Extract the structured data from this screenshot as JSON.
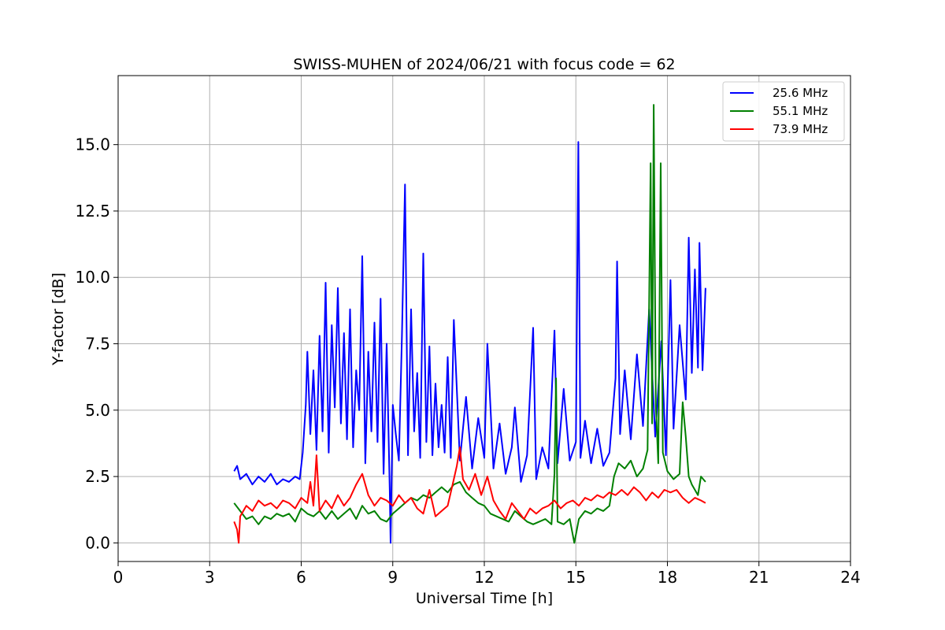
{
  "chart_data": {
    "type": "line",
    "title": "SWISS-MUHEN of 2024/06/21 with focus code = 62",
    "xlabel": "Universal Time [h]",
    "ylabel": "Y-factor [dB]",
    "xlim": [
      0,
      24
    ],
    "ylim": [
      -0.7,
      17.6
    ],
    "xticks": [
      0,
      3,
      6,
      9,
      12,
      15,
      18,
      21,
      24
    ],
    "xtick_labels": [
      "0",
      "3",
      "6",
      "9",
      "12",
      "15",
      "18",
      "21",
      "24"
    ],
    "yticks": [
      0,
      2.5,
      5,
      7.5,
      10,
      12.5,
      15
    ],
    "ytick_labels": [
      "0.0",
      "2.5",
      "5.0",
      "7.5",
      "10.0",
      "12.5",
      "15.0"
    ],
    "grid": true,
    "legend_position": "top-right",
    "series": [
      {
        "name": "25.6 MHz",
        "color": "#0000ff",
        "points": [
          [
            3.8,
            2.7
          ],
          [
            3.9,
            2.9
          ],
          [
            4.0,
            2.4
          ],
          [
            4.2,
            2.6
          ],
          [
            4.4,
            2.2
          ],
          [
            4.6,
            2.5
          ],
          [
            4.8,
            2.3
          ],
          [
            5.0,
            2.6
          ],
          [
            5.2,
            2.2
          ],
          [
            5.4,
            2.4
          ],
          [
            5.6,
            2.3
          ],
          [
            5.8,
            2.5
          ],
          [
            5.95,
            2.4
          ],
          [
            6.05,
            3.4
          ],
          [
            6.15,
            5.2
          ],
          [
            6.2,
            7.2
          ],
          [
            6.3,
            4.1
          ],
          [
            6.4,
            6.5
          ],
          [
            6.5,
            3.5
          ],
          [
            6.6,
            7.8
          ],
          [
            6.7,
            4.2
          ],
          [
            6.8,
            9.8
          ],
          [
            6.9,
            3.4
          ],
          [
            7.0,
            8.2
          ],
          [
            7.1,
            5.1
          ],
          [
            7.2,
            9.6
          ],
          [
            7.3,
            4.5
          ],
          [
            7.4,
            7.9
          ],
          [
            7.5,
            3.9
          ],
          [
            7.6,
            8.8
          ],
          [
            7.7,
            3.6
          ],
          [
            7.8,
            6.5
          ],
          [
            7.9,
            5.0
          ],
          [
            8.0,
            10.8
          ],
          [
            8.1,
            3.0
          ],
          [
            8.2,
            7.2
          ],
          [
            8.3,
            4.2
          ],
          [
            8.4,
            8.3
          ],
          [
            8.5,
            3.8
          ],
          [
            8.6,
            9.2
          ],
          [
            8.7,
            2.6
          ],
          [
            8.8,
            7.5
          ],
          [
            8.9,
            2.0
          ],
          [
            8.93,
            0.0
          ],
          [
            9.0,
            5.2
          ],
          [
            9.1,
            4.1
          ],
          [
            9.2,
            3.1
          ],
          [
            9.3,
            7.8
          ],
          [
            9.4,
            13.5
          ],
          [
            9.5,
            3.3
          ],
          [
            9.6,
            8.8
          ],
          [
            9.7,
            4.2
          ],
          [
            9.8,
            6.4
          ],
          [
            9.9,
            3.2
          ],
          [
            10.0,
            10.9
          ],
          [
            10.1,
            3.8
          ],
          [
            10.2,
            7.4
          ],
          [
            10.3,
            3.3
          ],
          [
            10.4,
            6.0
          ],
          [
            10.5,
            3.6
          ],
          [
            10.6,
            5.2
          ],
          [
            10.7,
            3.4
          ],
          [
            10.8,
            7.0
          ],
          [
            10.9,
            3.2
          ],
          [
            11.0,
            8.4
          ],
          [
            11.2,
            3.1
          ],
          [
            11.4,
            5.5
          ],
          [
            11.6,
            2.8
          ],
          [
            11.8,
            4.7
          ],
          [
            12.0,
            3.2
          ],
          [
            12.1,
            7.5
          ],
          [
            12.3,
            2.8
          ],
          [
            12.5,
            4.5
          ],
          [
            12.7,
            2.6
          ],
          [
            12.9,
            3.6
          ],
          [
            13.0,
            5.1
          ],
          [
            13.2,
            2.3
          ],
          [
            13.4,
            3.3
          ],
          [
            13.6,
            8.1
          ],
          [
            13.7,
            2.4
          ],
          [
            13.9,
            3.6
          ],
          [
            14.1,
            2.8
          ],
          [
            14.3,
            8.0
          ],
          [
            14.4,
            3.0
          ],
          [
            14.6,
            5.8
          ],
          [
            14.8,
            3.1
          ],
          [
            15.0,
            3.8
          ],
          [
            15.08,
            15.1
          ],
          [
            15.15,
            3.2
          ],
          [
            15.3,
            4.6
          ],
          [
            15.5,
            3.0
          ],
          [
            15.7,
            4.3
          ],
          [
            15.9,
            2.9
          ],
          [
            16.1,
            3.4
          ],
          [
            16.3,
            6.2
          ],
          [
            16.35,
            10.6
          ],
          [
            16.45,
            4.1
          ],
          [
            16.6,
            6.5
          ],
          [
            16.8,
            3.9
          ],
          [
            17.0,
            7.1
          ],
          [
            17.2,
            4.4
          ],
          [
            17.4,
            8.8
          ],
          [
            17.6,
            4.0
          ],
          [
            17.8,
            7.6
          ],
          [
            17.95,
            3.3
          ],
          [
            18.1,
            9.9
          ],
          [
            18.2,
            4.3
          ],
          [
            18.4,
            8.2
          ],
          [
            18.6,
            5.4
          ],
          [
            18.7,
            11.5
          ],
          [
            18.8,
            6.4
          ],
          [
            18.9,
            10.3
          ],
          [
            19.0,
            6.6
          ],
          [
            19.05,
            11.3
          ],
          [
            19.15,
            6.5
          ],
          [
            19.25,
            9.6
          ]
        ]
      },
      {
        "name": "55.1 MHz",
        "color": "#008000",
        "points": [
          [
            3.8,
            1.5
          ],
          [
            4.0,
            1.2
          ],
          [
            4.2,
            0.9
          ],
          [
            4.4,
            1.0
          ],
          [
            4.6,
            0.7
          ],
          [
            4.8,
            1.0
          ],
          [
            5.0,
            0.9
          ],
          [
            5.2,
            1.1
          ],
          [
            5.4,
            1.0
          ],
          [
            5.6,
            1.1
          ],
          [
            5.8,
            0.8
          ],
          [
            6.0,
            1.3
          ],
          [
            6.2,
            1.1
          ],
          [
            6.4,
            1.0
          ],
          [
            6.6,
            1.2
          ],
          [
            6.8,
            0.9
          ],
          [
            7.0,
            1.2
          ],
          [
            7.2,
            0.9
          ],
          [
            7.4,
            1.1
          ],
          [
            7.6,
            1.3
          ],
          [
            7.8,
            0.9
          ],
          [
            8.0,
            1.4
          ],
          [
            8.2,
            1.1
          ],
          [
            8.4,
            1.2
          ],
          [
            8.6,
            0.9
          ],
          [
            8.8,
            0.8
          ],
          [
            9.0,
            1.1
          ],
          [
            9.2,
            1.3
          ],
          [
            9.4,
            1.5
          ],
          [
            9.6,
            1.7
          ],
          [
            9.8,
            1.6
          ],
          [
            10.0,
            1.8
          ],
          [
            10.2,
            1.7
          ],
          [
            10.4,
            1.9
          ],
          [
            10.6,
            2.1
          ],
          [
            10.8,
            1.9
          ],
          [
            11.0,
            2.2
          ],
          [
            11.2,
            2.3
          ],
          [
            11.4,
            1.9
          ],
          [
            11.6,
            1.7
          ],
          [
            11.8,
            1.5
          ],
          [
            12.0,
            1.4
          ],
          [
            12.2,
            1.1
          ],
          [
            12.4,
            1.0
          ],
          [
            12.6,
            0.9
          ],
          [
            12.8,
            0.8
          ],
          [
            13.0,
            1.2
          ],
          [
            13.2,
            1.0
          ],
          [
            13.4,
            0.8
          ],
          [
            13.6,
            0.7
          ],
          [
            13.8,
            0.8
          ],
          [
            14.0,
            0.9
          ],
          [
            14.2,
            0.7
          ],
          [
            14.3,
            2.6
          ],
          [
            14.35,
            6.2
          ],
          [
            14.4,
            0.8
          ],
          [
            14.6,
            0.7
          ],
          [
            14.8,
            0.9
          ],
          [
            14.95,
            0.0
          ],
          [
            15.1,
            0.9
          ],
          [
            15.3,
            1.2
          ],
          [
            15.5,
            1.1
          ],
          [
            15.7,
            1.3
          ],
          [
            15.9,
            1.2
          ],
          [
            16.1,
            1.4
          ],
          [
            16.25,
            2.5
          ],
          [
            16.4,
            3.0
          ],
          [
            16.6,
            2.8
          ],
          [
            16.8,
            3.1
          ],
          [
            17.0,
            2.5
          ],
          [
            17.2,
            2.8
          ],
          [
            17.35,
            3.5
          ],
          [
            17.45,
            14.3
          ],
          [
            17.5,
            4.5
          ],
          [
            17.55,
            16.5
          ],
          [
            17.62,
            5.2
          ],
          [
            17.7,
            3.0
          ],
          [
            17.78,
            14.3
          ],
          [
            17.85,
            3.4
          ],
          [
            18.0,
            2.7
          ],
          [
            18.2,
            2.4
          ],
          [
            18.4,
            2.6
          ],
          [
            18.5,
            5.3
          ],
          [
            18.6,
            4.0
          ],
          [
            18.7,
            2.5
          ],
          [
            18.8,
            2.2
          ],
          [
            19.0,
            1.8
          ],
          [
            19.1,
            2.5
          ],
          [
            19.25,
            2.3
          ]
        ]
      },
      {
        "name": "73.9 MHz",
        "color": "#ff0000",
        "points": [
          [
            3.8,
            0.8
          ],
          [
            3.9,
            0.5
          ],
          [
            3.95,
            0.0
          ],
          [
            4.0,
            1.0
          ],
          [
            4.2,
            1.4
          ],
          [
            4.4,
            1.2
          ],
          [
            4.6,
            1.6
          ],
          [
            4.8,
            1.4
          ],
          [
            5.0,
            1.5
          ],
          [
            5.2,
            1.3
          ],
          [
            5.4,
            1.6
          ],
          [
            5.6,
            1.5
          ],
          [
            5.8,
            1.3
          ],
          [
            6.0,
            1.7
          ],
          [
            6.2,
            1.5
          ],
          [
            6.3,
            2.3
          ],
          [
            6.4,
            1.4
          ],
          [
            6.5,
            3.3
          ],
          [
            6.6,
            1.2
          ],
          [
            6.8,
            1.6
          ],
          [
            7.0,
            1.3
          ],
          [
            7.2,
            1.8
          ],
          [
            7.4,
            1.4
          ],
          [
            7.6,
            1.7
          ],
          [
            7.8,
            2.2
          ],
          [
            8.0,
            2.6
          ],
          [
            8.2,
            1.8
          ],
          [
            8.4,
            1.4
          ],
          [
            8.6,
            1.7
          ],
          [
            8.8,
            1.6
          ],
          [
            9.0,
            1.4
          ],
          [
            9.2,
            1.8
          ],
          [
            9.4,
            1.5
          ],
          [
            9.6,
            1.7
          ],
          [
            9.8,
            1.3
          ],
          [
            10.0,
            1.1
          ],
          [
            10.2,
            2.0
          ],
          [
            10.4,
            1.0
          ],
          [
            10.6,
            1.2
          ],
          [
            10.8,
            1.4
          ],
          [
            11.0,
            2.4
          ],
          [
            11.1,
            2.9
          ],
          [
            11.2,
            3.6
          ],
          [
            11.3,
            2.4
          ],
          [
            11.5,
            2.0
          ],
          [
            11.7,
            2.6
          ],
          [
            11.9,
            1.8
          ],
          [
            12.1,
            2.5
          ],
          [
            12.3,
            1.6
          ],
          [
            12.5,
            1.2
          ],
          [
            12.7,
            0.9
          ],
          [
            12.9,
            1.5
          ],
          [
            13.1,
            1.2
          ],
          [
            13.3,
            0.9
          ],
          [
            13.5,
            1.3
          ],
          [
            13.7,
            1.1
          ],
          [
            13.9,
            1.3
          ],
          [
            14.1,
            1.4
          ],
          [
            14.3,
            1.6
          ],
          [
            14.5,
            1.3
          ],
          [
            14.7,
            1.5
          ],
          [
            14.9,
            1.6
          ],
          [
            15.1,
            1.4
          ],
          [
            15.3,
            1.7
          ],
          [
            15.5,
            1.6
          ],
          [
            15.7,
            1.8
          ],
          [
            15.9,
            1.7
          ],
          [
            16.1,
            1.9
          ],
          [
            16.3,
            1.8
          ],
          [
            16.5,
            2.0
          ],
          [
            16.7,
            1.8
          ],
          [
            16.9,
            2.1
          ],
          [
            17.1,
            1.9
          ],
          [
            17.3,
            1.6
          ],
          [
            17.5,
            1.9
          ],
          [
            17.7,
            1.7
          ],
          [
            17.9,
            2.0
          ],
          [
            18.1,
            1.9
          ],
          [
            18.3,
            2.0
          ],
          [
            18.5,
            1.7
          ],
          [
            18.7,
            1.5
          ],
          [
            18.9,
            1.7
          ],
          [
            19.1,
            1.6
          ],
          [
            19.25,
            1.5
          ]
        ]
      }
    ]
  }
}
